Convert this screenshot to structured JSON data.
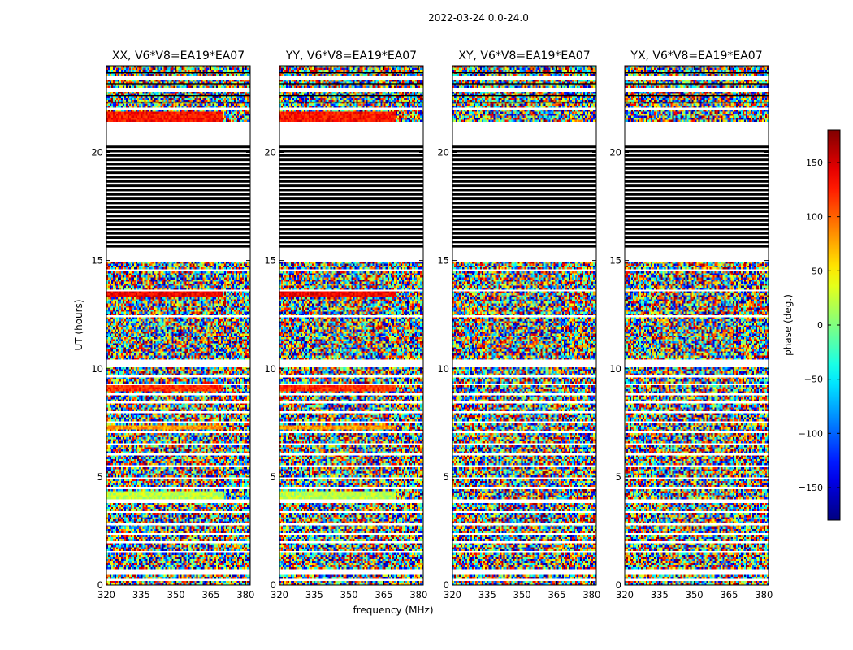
{
  "chart_data": {
    "type": "heatmap",
    "suptitle": "2022-03-24 0.0-24.0",
    "xlabel": "frequency (MHz)",
    "ylabel": "UT (hours)",
    "xlim": [
      320,
      382
    ],
    "ylim": [
      0,
      24
    ],
    "xticks": [
      320,
      335,
      350,
      365,
      380
    ],
    "yticks": [
      0,
      5,
      10,
      15,
      20
    ],
    "colorbar": {
      "label": "phase (deg.)",
      "range": [
        -180,
        180
      ],
      "ticks": [
        150,
        100,
        50,
        0,
        -50,
        -100,
        -150
      ],
      "tick_labels": [
        "150",
        "100",
        "50",
        "0",
        "−50",
        "−100",
        "−150"
      ],
      "colormap": "jet"
    },
    "panels": [
      {
        "title": "XX, V6*V8=EA19*EA07"
      },
      {
        "title": "YY, V6*V8=EA19*EA07"
      },
      {
        "title": "XY, V6*V8=EA19*EA07"
      },
      {
        "title": "YX, V6*V8=EA19*EA07"
      }
    ],
    "flagged_ut_ranges": [
      [
        0.2,
        0.25
      ],
      [
        0.5,
        0.75
      ],
      [
        1.5,
        1.6
      ],
      [
        1.95,
        2.05
      ],
      [
        2.3,
        2.4
      ],
      [
        2.8,
        2.9
      ],
      [
        3.3,
        3.4
      ],
      [
        3.8,
        3.95
      ],
      [
        4.4,
        4.5
      ],
      [
        4.9,
        5.0
      ],
      [
        5.4,
        5.5
      ],
      [
        6.0,
        6.1
      ],
      [
        6.5,
        6.6
      ],
      [
        7.0,
        7.1
      ],
      [
        7.5,
        7.6
      ],
      [
        7.9,
        8.05
      ],
      [
        8.4,
        8.5
      ],
      [
        8.8,
        8.9
      ],
      [
        9.2,
        9.3
      ],
      [
        9.6,
        9.7
      ],
      [
        10.1,
        10.4
      ],
      [
        12.4,
        12.5
      ],
      [
        13.6,
        13.7
      ],
      [
        14.5,
        14.6
      ],
      [
        15.0,
        15.6
      ],
      [
        20.4,
        21.4
      ],
      [
        22.0,
        22.1
      ],
      [
        22.8,
        23.0
      ],
      [
        23.4,
        23.5
      ]
    ],
    "dark_band_ut_range": [
      15.6,
      20.4
    ],
    "coherent_bands": [
      {
        "ut": [
          21.4,
          21.9
        ],
        "phase": 130,
        "panels": [
          "XX",
          "YY"
        ]
      },
      {
        "ut": [
          13.3,
          13.6
        ],
        "phase": 140,
        "panels": [
          "XX",
          "YY"
        ]
      },
      {
        "ut": [
          9.0,
          9.2
        ],
        "phase": 120,
        "panels": [
          "XX",
          "YY"
        ]
      },
      {
        "ut": [
          7.2,
          7.35
        ],
        "phase": 80,
        "panels": [
          "XX",
          "YY"
        ]
      },
      {
        "ut": [
          4.0,
          4.35
        ],
        "phase": 20,
        "panels": [
          "XX",
          "YY"
        ]
      }
    ]
  }
}
